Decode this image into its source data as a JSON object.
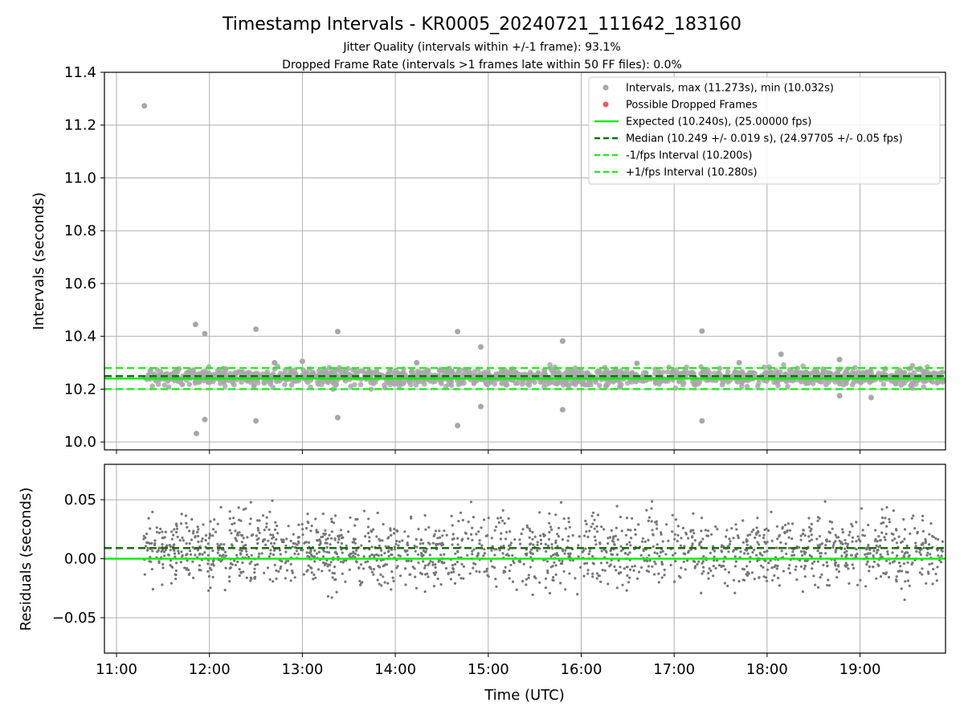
{
  "chart_data": {
    "type": "scatter",
    "title": "Timestamp Intervals - KR0005_20240721_111642_183160",
    "subtitle_lines": [
      "Jitter Quality (intervals within +/-1 frame): 93.1%",
      "Dropped Frame Rate (intervals >1 frames late within 50 FF files): 0.0%"
    ],
    "xlabel": "Time (UTC)",
    "x_tick_labels": [
      "11:00",
      "12:00",
      "13:00",
      "14:00",
      "15:00",
      "16:00",
      "17:00",
      "18:00",
      "19:00"
    ],
    "x_ticks_hours": [
      11,
      12,
      13,
      14,
      15,
      16,
      17,
      18,
      19
    ],
    "xlim_hours": [
      10.87,
      19.92
    ],
    "data_start_hour": 11.29,
    "data_end_hour": 19.9,
    "grid": true,
    "legend_position": "upper right",
    "colors": {
      "intervals": "#a8a8a8",
      "dropped": "#ff5555",
      "expected": "#11ee11",
      "median": "#107010",
      "fps_bounds": "#22ee22",
      "residuals": "#777777",
      "grid": "#b0b0b0"
    },
    "panels": {
      "intervals": {
        "ylabel": "Intervals (seconds)",
        "ylim": [
          9.97,
          11.4
        ],
        "y_ticks": [
          10.0,
          10.2,
          10.4,
          10.6,
          10.8,
          11.0,
          11.2,
          11.4
        ],
        "y_tick_labels": [
          "10.0",
          "10.2",
          "10.4",
          "10.6",
          "10.8",
          "11.0",
          "11.2",
          "11.4"
        ],
        "lines": {
          "expected": 10.24,
          "median": 10.249,
          "minus_fps": 10.2,
          "plus_fps": 10.28
        },
        "band": {
          "center": 10.245,
          "spread": 0.022
        },
        "outliers": [
          [
            11.3,
            11.273
          ],
          [
            11.85,
            10.445
          ],
          [
            11.95,
            10.41
          ],
          [
            12.5,
            10.427
          ],
          [
            13.38,
            10.418
          ],
          [
            14.67,
            10.418
          ],
          [
            14.92,
            10.36
          ],
          [
            15.8,
            10.382
          ],
          [
            17.3,
            10.42
          ],
          [
            11.86,
            10.032
          ],
          [
            11.95,
            10.085
          ],
          [
            12.5,
            10.08
          ],
          [
            13.38,
            10.092
          ],
          [
            14.67,
            10.062
          ],
          [
            14.92,
            10.134
          ],
          [
            15.8,
            10.122
          ],
          [
            17.3,
            10.08
          ],
          [
            18.15,
            10.332
          ],
          [
            18.78,
            10.312
          ],
          [
            18.78,
            10.175
          ],
          [
            19.12,
            10.168
          ],
          [
            12.7,
            10.3
          ],
          [
            13.0,
            10.305
          ],
          [
            14.23,
            10.3
          ],
          [
            16.6,
            10.298
          ],
          [
            17.7,
            10.3
          ]
        ]
      },
      "residuals": {
        "ylabel": "Residuals (seconds)",
        "ylim": [
          -0.08,
          0.08
        ],
        "y_ticks": [
          -0.05,
          0.0,
          0.05
        ],
        "y_tick_labels": [
          "−0.05",
          "0.00",
          "0.05"
        ],
        "zero_line": 0.0,
        "median_offset": 0.009,
        "band": {
          "center": 0.007,
          "spread": 0.021
        }
      }
    },
    "legend": [
      {
        "label": "Intervals, max (11.273s), min (10.032s)",
        "marker": "dot",
        "color": "#a8a8a8"
      },
      {
        "label": "Possible Dropped Frames",
        "marker": "dot",
        "color": "#ff5555"
      },
      {
        "label": "Expected (10.240s), (25.00000 fps)",
        "marker": "solid",
        "color": "#11ee11"
      },
      {
        "label": "Median (10.249 +/- 0.019 s), (24.97705 +/- 0.05 fps)",
        "marker": "dashed",
        "color": "#107010"
      },
      {
        "label": "-1/fps Interval (10.200s)",
        "marker": "dashed",
        "color": "#22ee22"
      },
      {
        "label": "+1/fps Interval (10.280s)",
        "marker": "dashed",
        "color": "#22ee22"
      }
    ]
  }
}
